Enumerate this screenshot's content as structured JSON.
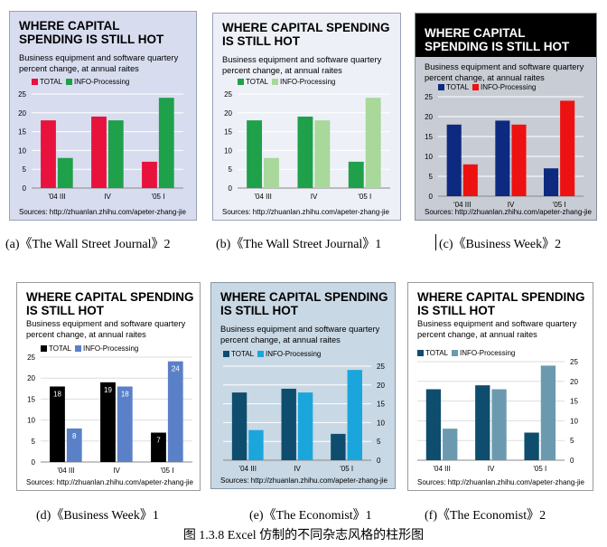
{
  "panels": [
    {
      "title": "WHERE CAPITAL SPENDING IS STILL HOT",
      "subtitle": "Business equipment and software quartery percent change, at annual raites",
      "source": "Sources: http://zhuanlan.zhihu.com/apeter-zhang-jie",
      "caption": "(a)《The Wall Street Journal》2",
      "colors": {
        "bg": "#d8dcef",
        "border": "#9aa0b8",
        "title": "#000000",
        "text": "#000000",
        "grid": "#ffffff",
        "total": "#e8123c",
        "info": "#1fa04a"
      }
    },
    {
      "title": "WHERE CAPITAL SPENDING IS STILL HOT",
      "subtitle": "Business equipment and software quartery percent change, at annual raites",
      "source": "Sources: http://zhuanlan.zhihu.com/apeter-zhang-jie",
      "caption": "(b)《The Wall Street Journal》1",
      "colors": {
        "bg": "#eef0f8",
        "border": "#9aa0b8",
        "title": "#000000",
        "text": "#000000",
        "grid": "#ffffff",
        "total": "#1fa04a",
        "info": "#a8d89a"
      }
    },
    {
      "title": "WHERE CAPITAL SPENDING IS STILL HOT",
      "subtitle": "Business equipment and software quartery percent change, at annual raites",
      "source": "Sources: http://zhuanlan.zhihu.com/apeter-zhang-jie",
      "caption": "(c)《Business Week》2",
      "colors": {
        "bg": "#c8ccd4",
        "border": "#8a8e98",
        "title": "#ffffff",
        "text": "#000000",
        "grid": "#ffffff",
        "total": "#0d2a80",
        "info": "#ee1111"
      }
    },
    {
      "title": "WHERE CAPITAL SPENDING IS STILL HOT",
      "subtitle": "Business equipment and software quartery percent change, at annual raites",
      "source": "Sources: http://zhuanlan.zhihu.com/apeter-zhang-jie",
      "caption": "(d)《Business Week》1",
      "colors": {
        "bg": "#ffffff",
        "border": "#9a9a9a",
        "title": "#000000",
        "text": "#000000",
        "grid": "#dddddd",
        "total": "#000000",
        "info": "#5a80c8"
      }
    },
    {
      "title": "WHERE CAPITAL SPENDING IS STILL HOT",
      "subtitle": "Business equipment and software quartery percent change, at annual raites",
      "source": "Sources: http://zhuanlan.zhihu.com/apeter-zhang-jie",
      "caption": "(e)《The Economist》1",
      "colors": {
        "bg": "#c8d8e4",
        "border": "#8a98a4",
        "title": "#000000",
        "text": "#000000",
        "grid": "#ffffff",
        "total": "#0e4d6e",
        "info": "#1aa6dc"
      }
    },
    {
      "title": "WHERE CAPITAL SPENDING IS STILL HOT",
      "subtitle": "Business equipment and software quartery percent change, at annual raites",
      "source": "Sources: http://zhuanlan.zhihu.com/apeter-zhang-jie",
      "caption": "(f)《The Economist》2",
      "colors": {
        "bg": "#ffffff",
        "border": "#9a9a9a",
        "title": "#000000",
        "text": "#000000",
        "grid": "#dddddd",
        "total": "#0e4d6e",
        "info": "#6b9ab0"
      }
    }
  ],
  "chart_data": {
    "type": "bar",
    "categories": [
      "'04 III",
      "IV",
      "'05 I"
    ],
    "series": [
      {
        "name": "TOTAL",
        "values": [
          18,
          19,
          7
        ]
      },
      {
        "name": "INFO-Processing",
        "values": [
          8,
          18,
          24
        ]
      }
    ],
    "ylim": [
      0,
      25
    ],
    "yticks": [
      "0",
      "5",
      "10",
      "15",
      "20",
      "25"
    ],
    "grid": true,
    "legend": "top-left",
    "data_labels_panel": "d"
  },
  "figure_caption": "图 1.3.8 Excel 仿制的不同杂志风格的柱形图"
}
